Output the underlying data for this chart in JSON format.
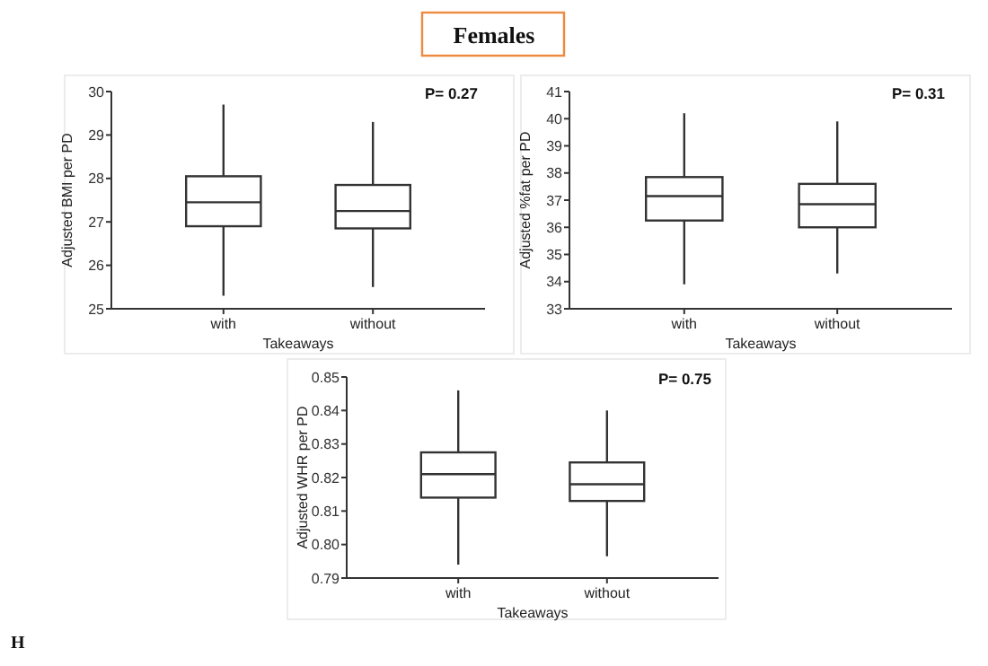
{
  "chart_data": [
    {
      "type": "box",
      "title": "Females",
      "ylabel": "Adjusted BMI per PD",
      "xlabel": "Takeaways",
      "categories": [
        "with",
        "without"
      ],
      "ylim": [
        25,
        30
      ],
      "yticks": [
        25,
        26,
        27,
        28,
        29,
        30
      ],
      "annotations": [
        "P= 0.27"
      ],
      "grid": false,
      "boxes": [
        {
          "low": 25.3,
          "q1": 26.9,
          "median": 27.45,
          "q3": 28.05,
          "high": 29.7
        },
        {
          "low": 25.5,
          "q1": 26.85,
          "median": 27.25,
          "q3": 27.85,
          "high": 29.3
        }
      ]
    },
    {
      "type": "box",
      "ylabel": "Adjusted %fat per PD",
      "xlabel": "Takeaways",
      "categories": [
        "with",
        "without"
      ],
      "ylim": [
        33,
        41
      ],
      "yticks": [
        33,
        34,
        35,
        36,
        37,
        38,
        39,
        40,
        41
      ],
      "annotations": [
        "P= 0.31"
      ],
      "grid": false,
      "boxes": [
        {
          "low": 33.9,
          "q1": 36.25,
          "median": 37.15,
          "q3": 37.85,
          "high": 40.2
        },
        {
          "low": 34.3,
          "q1": 36.0,
          "median": 36.85,
          "q3": 37.6,
          "high": 39.9
        }
      ]
    },
    {
      "type": "box",
      "ylabel": "Adjusted WHR per PD",
      "xlabel": "Takeaways",
      "categories": [
        "with",
        "without"
      ],
      "ylim": [
        0.79,
        0.85
      ],
      "yticks": [
        {
          "value": 0.79,
          "label": "0.79"
        },
        {
          "value": 0.8,
          "label": "0.80"
        },
        {
          "value": 0.81,
          "label": "0.81"
        },
        {
          "value": 0.82,
          "label": "0.82"
        },
        {
          "value": 0.83,
          "label": "0.83"
        },
        {
          "value": 0.84,
          "label": "0.84"
        },
        {
          "value": 0.85,
          "label": "0.85"
        }
      ],
      "annotations": [
        "P= 0.75",
        "H"
      ],
      "grid": false,
      "boxes": [
        {
          "low": 0.794,
          "q1": 0.814,
          "median": 0.821,
          "q3": 0.8275,
          "high": 0.846
        },
        {
          "low": 0.7965,
          "q1": 0.813,
          "median": 0.818,
          "q3": 0.8245,
          "high": 0.84
        }
      ]
    }
  ]
}
